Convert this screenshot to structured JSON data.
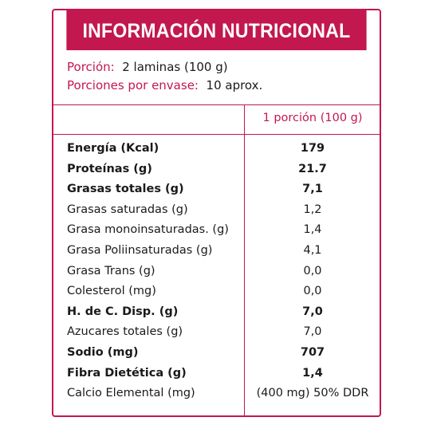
{
  "header": {
    "title": "INFORMACIÓN NUTRICIONAL"
  },
  "portion": [
    {
      "label": "Porción:",
      "value": "2 laminas (100 g)"
    },
    {
      "label": "Porciones por envase:",
      "value": "10 aprox."
    }
  ],
  "table": {
    "column_header": "1 porción (100 g)",
    "rows": [
      {
        "label": "Energía (Kcal)",
        "value": "179",
        "bold": true
      },
      {
        "label": "Proteínas (g)",
        "value": "21.7",
        "bold": true
      },
      {
        "label": "Grasas totales (g)",
        "value": "7,1",
        "bold": true
      },
      {
        "label": "Grasas saturadas (g)",
        "value": "1,2",
        "bold": false
      },
      {
        "label": "Grasa monoinsaturadas. (g)",
        "value": "1,4",
        "bold": false
      },
      {
        "label": "Grasa Poliinsaturadas (g)",
        "value": "4,1",
        "bold": false
      },
      {
        "label": "Grasa Trans (g)",
        "value": "0,0",
        "bold": false
      },
      {
        "label": "Colesterol (mg)",
        "value": "0,0",
        "bold": false
      },
      {
        "label": "H. de C. Disp. (g)",
        "value": "7,0",
        "bold": true
      },
      {
        "label": "Azucares totales (g)",
        "value": "7,0",
        "bold": false
      },
      {
        "label": "Sodio (mg)",
        "value": "707",
        "bold": true
      },
      {
        "label": "Fibra Dietética (g)",
        "value": "1,4",
        "bold": true
      },
      {
        "label": "Calcio Elemental (mg)",
        "value": "(400 mg) 50% DDR",
        "bold": false
      }
    ]
  }
}
